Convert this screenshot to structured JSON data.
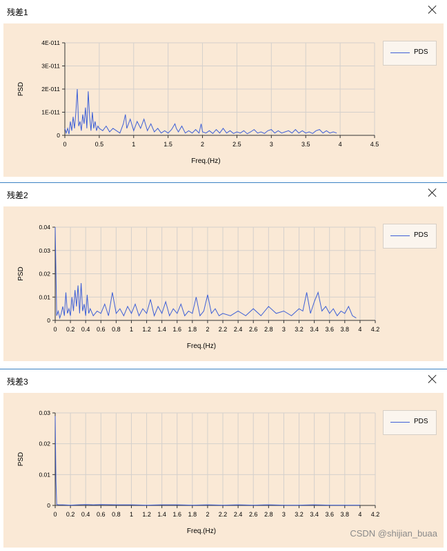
{
  "windows": [
    {
      "title": "残差1",
      "legend": "PDS"
    },
    {
      "title": "残差2",
      "legend": "PDS"
    },
    {
      "title": "残差3",
      "legend": "PDS"
    }
  ],
  "watermark": "CSDN @shijian_buaa",
  "colors": {
    "line": "#3d5fd6",
    "panel": "#fae9d6",
    "grid": "#d4d0cc"
  },
  "chart_data": [
    {
      "type": "line",
      "xlabel": "Freq.(Hz)",
      "ylabel": "PSD",
      "xlim": [
        0,
        4.5
      ],
      "ylim": [
        0,
        4e-11
      ],
      "xticks": [
        "0",
        "0.5",
        "1",
        "1.5",
        "2",
        "2.5",
        "3",
        "3.5",
        "4",
        "4.5"
      ],
      "yticks": [
        "0",
        "1E-011",
        "2E-011",
        "3E-011",
        "4E-011"
      ],
      "grid": true,
      "legend_position": "top-right",
      "series": [
        {
          "name": "PDS",
          "x": [
            0,
            0.02,
            0.04,
            0.06,
            0.08,
            0.1,
            0.12,
            0.14,
            0.16,
            0.18,
            0.2,
            0.22,
            0.24,
            0.26,
            0.28,
            0.3,
            0.32,
            0.34,
            0.36,
            0.38,
            0.4,
            0.42,
            0.44,
            0.46,
            0.48,
            0.5,
            0.55,
            0.6,
            0.65,
            0.7,
            0.75,
            0.8,
            0.85,
            0.88,
            0.9,
            0.95,
            1.0,
            1.05,
            1.1,
            1.15,
            1.2,
            1.25,
            1.3,
            1.35,
            1.4,
            1.45,
            1.5,
            1.55,
            1.6,
            1.62,
            1.65,
            1.7,
            1.75,
            1.8,
            1.85,
            1.9,
            1.95,
            1.98,
            2.0,
            2.05,
            2.1,
            2.15,
            2.2,
            2.25,
            2.3,
            2.35,
            2.4,
            2.45,
            2.5,
            2.55,
            2.6,
            2.65,
            2.7,
            2.75,
            2.8,
            2.85,
            2.9,
            2.95,
            3.0,
            3.05,
            3.1,
            3.15,
            3.2,
            3.25,
            3.3,
            3.35,
            3.4,
            3.45,
            3.5,
            3.55,
            3.6,
            3.65,
            3.7,
            3.75,
            3.8,
            3.85,
            3.9,
            3.95
          ],
          "values": [
            3e-12,
            1e-12,
            3e-12,
            5e-13,
            6e-12,
            2e-12,
            8e-12,
            3e-12,
            1e-11,
            2e-11,
            4e-12,
            6e-12,
            2e-12,
            9e-12,
            5e-12,
            1.2e-11,
            3e-12,
            1.9e-11,
            8e-12,
            2e-12,
            1e-11,
            3e-12,
            6e-12,
            2e-12,
            4e-12,
            3e-12,
            2e-12,
            4e-12,
            1.5e-12,
            3e-12,
            2e-12,
            1e-12,
            5e-12,
            9e-12,
            3e-12,
            7e-12,
            2e-12,
            6e-12,
            3e-12,
            7e-12,
            2e-12,
            5e-12,
            1.5e-12,
            3e-12,
            1e-12,
            2e-12,
            1e-12,
            2.5e-12,
            5e-12,
            3e-12,
            1.5e-12,
            4e-12,
            1e-12,
            2e-12,
            1e-12,
            2.5e-12,
            1e-12,
            5e-12,
            1.5e-12,
            1e-12,
            2e-12,
            8e-13,
            2.5e-12,
            1e-12,
            3e-12,
            1e-12,
            2e-12,
            8e-13,
            1.5e-12,
            1e-12,
            2e-12,
            7e-13,
            1.5e-12,
            2.5e-12,
            1e-12,
            1.5e-12,
            8e-13,
            2e-12,
            2.5e-12,
            1e-12,
            2e-12,
            1e-12,
            1.5e-12,
            2e-12,
            1e-12,
            2.5e-12,
            1e-12,
            2e-12,
            1e-12,
            1.5e-12,
            8e-13,
            2e-12,
            2.5e-12,
            1e-12,
            2e-12,
            1e-12,
            1.5e-12,
            1e-12
          ]
        }
      ]
    },
    {
      "type": "line",
      "xlabel": "Freq.(Hz)",
      "ylabel": "PSD",
      "xlim": [
        0,
        4.2
      ],
      "ylim": [
        0,
        0.04
      ],
      "xticks": [
        "0",
        "0.2",
        "0.4",
        "0.6",
        "0.8",
        "1",
        "1.2",
        "1.4",
        "1.6",
        "1.8",
        "2",
        "2.2",
        "2.4",
        "2.6",
        "2.8",
        "3",
        "3.2",
        "3.4",
        "3.6",
        "3.8",
        "4",
        "4.2"
      ],
      "yticks": [
        "0",
        "0.01",
        "0.02",
        "0.03",
        "0.04"
      ],
      "grid": true,
      "legend_position": "top-right",
      "series": [
        {
          "name": "PDS",
          "x": [
            0,
            0.02,
            0.04,
            0.06,
            0.08,
            0.1,
            0.12,
            0.14,
            0.16,
            0.18,
            0.2,
            0.22,
            0.24,
            0.26,
            0.28,
            0.3,
            0.32,
            0.34,
            0.36,
            0.38,
            0.4,
            0.42,
            0.44,
            0.46,
            0.5,
            0.55,
            0.6,
            0.65,
            0.7,
            0.75,
            0.8,
            0.85,
            0.9,
            0.95,
            1.0,
            1.05,
            1.1,
            1.15,
            1.2,
            1.25,
            1.3,
            1.35,
            1.4,
            1.45,
            1.5,
            1.55,
            1.6,
            1.65,
            1.7,
            1.75,
            1.8,
            1.85,
            1.9,
            1.95,
            2.0,
            2.05,
            2.1,
            2.15,
            2.2,
            2.3,
            2.4,
            2.5,
            2.6,
            2.7,
            2.8,
            2.9,
            3.0,
            3.1,
            3.2,
            3.25,
            3.3,
            3.35,
            3.4,
            3.45,
            3.5,
            3.55,
            3.6,
            3.65,
            3.7,
            3.75,
            3.8,
            3.85,
            3.9,
            3.95
          ],
          "values": [
            0.04,
            0.002,
            0.004,
            0.001,
            0.003,
            0.006,
            0.002,
            0.012,
            0.003,
            0.005,
            0.002,
            0.01,
            0.004,
            0.013,
            0.006,
            0.015,
            0.003,
            0.016,
            0.004,
            0.007,
            0.002,
            0.011,
            0.003,
            0.005,
            0.002,
            0.004,
            0.003,
            0.007,
            0.002,
            0.012,
            0.003,
            0.005,
            0.002,
            0.006,
            0.003,
            0.007,
            0.002,
            0.005,
            0.003,
            0.009,
            0.002,
            0.006,
            0.003,
            0.008,
            0.002,
            0.005,
            0.003,
            0.007,
            0.002,
            0.004,
            0.003,
            0.01,
            0.002,
            0.004,
            0.011,
            0.003,
            0.005,
            0.002,
            0.003,
            0.002,
            0.004,
            0.002,
            0.005,
            0.002,
            0.006,
            0.003,
            0.004,
            0.002,
            0.005,
            0.004,
            0.012,
            0.003,
            0.008,
            0.012,
            0.004,
            0.006,
            0.003,
            0.005,
            0.002,
            0.004,
            0.003,
            0.006,
            0.002,
            0.001
          ]
        }
      ]
    },
    {
      "type": "line",
      "xlabel": "Freq.(Hz)",
      "ylabel": "PSD",
      "xlim": [
        0,
        4.2
      ],
      "ylim": [
        0,
        0.03
      ],
      "xticks": [
        "0",
        "0.2",
        "0.4",
        "0.6",
        "0.8",
        "1",
        "1.2",
        "1.4",
        "1.6",
        "1.8",
        "2",
        "2.2",
        "2.4",
        "2.6",
        "2.8",
        "3",
        "3.2",
        "3.4",
        "3.6",
        "3.8",
        "4",
        "4.2"
      ],
      "yticks": [
        "0",
        "0.01",
        "0.02",
        "0.03"
      ],
      "grid": true,
      "legend_position": "top-right",
      "series": [
        {
          "name": "PDS",
          "x": [
            0,
            0.01,
            0.02,
            0.05,
            0.1,
            0.2,
            0.3,
            0.4,
            0.5,
            0.6,
            0.8,
            1.0,
            1.2,
            1.4,
            1.6,
            1.8,
            2.0,
            2.2,
            2.4,
            2.6,
            2.8,
            3.0,
            3.2,
            3.4,
            3.6,
            3.8,
            4.0
          ],
          "values": [
            0.029,
            0.008,
            0.0003,
            0.0002,
            0.0002,
            0.0001,
            0.0002,
            0.0003,
            0.0002,
            0.0003,
            0.0002,
            0.0002,
            0.0001,
            0.0002,
            0.0002,
            0.0001,
            0.0002,
            0.0001,
            0.0002,
            0.0001,
            0.0002,
            0.0001,
            0.0001,
            0.0002,
            0.0001,
            0.0001,
            0.0001
          ]
        }
      ]
    }
  ]
}
